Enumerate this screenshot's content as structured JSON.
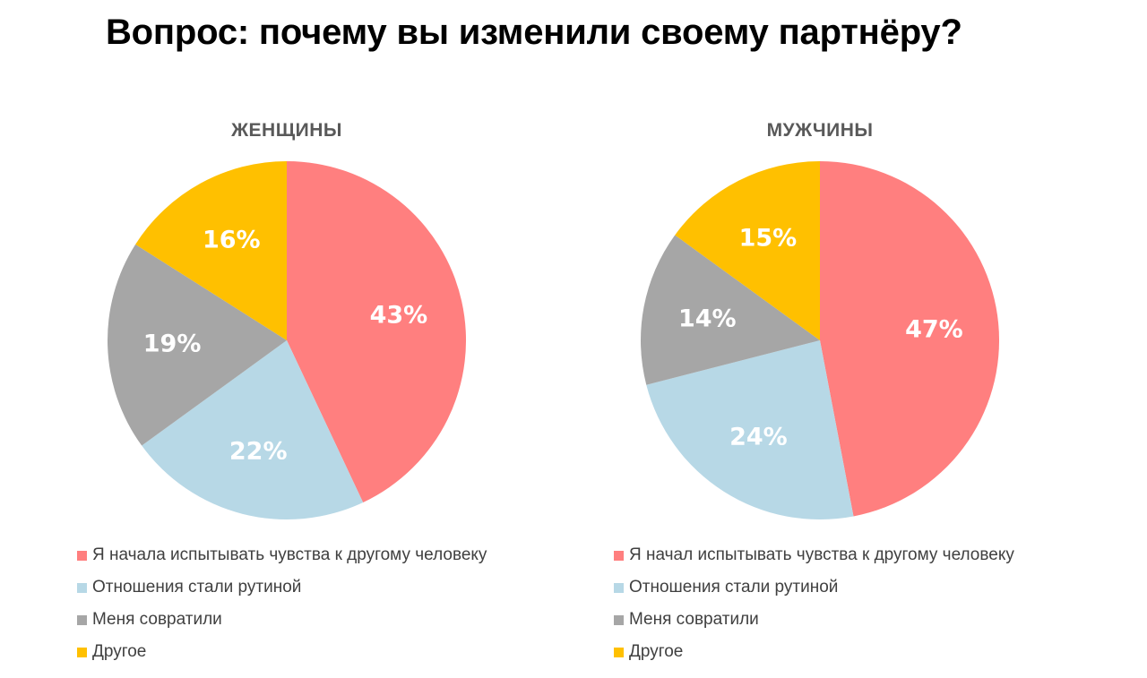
{
  "title": "Вопрос: почему вы изменили своему партнёру?",
  "colors": {
    "feelings": "#ff7f7f",
    "routine": "#b7d8e6",
    "seduced": "#a6a6a6",
    "other": "#ffc000"
  },
  "chart_data": [
    {
      "type": "pie",
      "title": "ЖЕНЩИНЫ",
      "categories": [
        "Я начала испытывать чувства к другому человеку",
        "Отношения стали рутиной",
        "Меня совратили",
        "Другое"
      ],
      "values": [
        43,
        22,
        19,
        16
      ],
      "value_labels": [
        "43%",
        "22%",
        "19%",
        "16%"
      ],
      "legend": "bottom",
      "start": "12 o'clock",
      "direction": "clockwise"
    },
    {
      "type": "pie",
      "title": "МУЖЧИНЫ",
      "categories": [
        "Я начал испытывать чувства к другому человеку",
        "Отношения стали рутиной",
        "Меня совратили",
        "Другое"
      ],
      "values": [
        47,
        24,
        14,
        15
      ],
      "value_labels": [
        "47%",
        "24%",
        "14%",
        "15%"
      ],
      "legend": "bottom",
      "start": "12 o'clock",
      "direction": "clockwise"
    }
  ]
}
